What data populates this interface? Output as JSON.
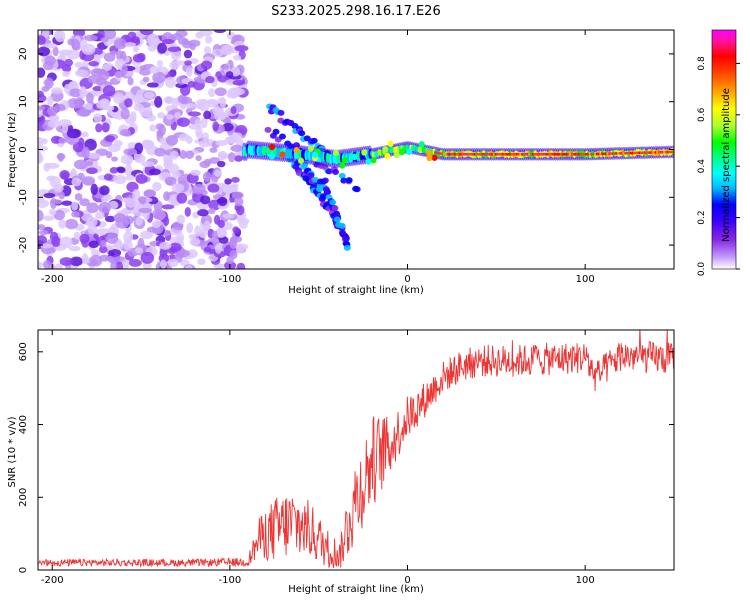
{
  "title": "S233.2025.298.16.17.E26",
  "chart_data": [
    {
      "type": "heatmap",
      "xlabel": "Height of straight line (km)",
      "ylabel": "Frequency (Hz)",
      "xlim": [
        -208,
        150
      ],
      "ylim": [
        -25,
        25
      ],
      "xticks": [
        -200,
        -100,
        0,
        100
      ],
      "yticks": [
        -20,
        -10,
        0,
        10,
        20
      ],
      "noise_region_x": [
        -208,
        -92
      ],
      "main_band": [
        {
          "x": -90,
          "y": 0
        },
        {
          "x": -60,
          "y": -1
        },
        {
          "x": -40,
          "y": -2
        },
        {
          "x": -20,
          "y": -1
        },
        {
          "x": 0,
          "y": 0.5
        },
        {
          "x": 20,
          "y": -1
        },
        {
          "x": 60,
          "y": -1
        },
        {
          "x": 100,
          "y": -1
        },
        {
          "x": 150,
          "y": -0.5
        }
      ],
      "dispersive_branches": [
        {
          "start": [
            -78,
            9
          ],
          "end": [
            -45,
            -1
          ]
        },
        {
          "start": [
            -78,
            4
          ],
          "end": [
            -28,
            -8
          ]
        },
        {
          "start": [
            -65,
            -2
          ],
          "end": [
            -45,
            -12
          ]
        },
        {
          "start": [
            -58,
            -3
          ],
          "end": [
            -35,
            -18
          ]
        },
        {
          "start": [
            -48,
            -6
          ],
          "end": [
            -33,
            -21
          ]
        }
      ],
      "colorbar": {
        "label": "Normalized spectral amplitude",
        "ticks": [
          0.0,
          0.2,
          0.4,
          0.6,
          0.8
        ],
        "range": [
          0,
          0.93
        ],
        "colors": [
          "#ffffff",
          "#c39bff",
          "#8a2be2",
          "#3b00ff",
          "#0000ff",
          "#00bfff",
          "#00ffff",
          "#00ff7f",
          "#00ff00",
          "#adff2f",
          "#ffff00",
          "#ffa500",
          "#ff4500",
          "#ff0000",
          "#ff1493",
          "#ff00ff"
        ]
      }
    },
    {
      "type": "line",
      "xlabel": "Height of straight line (km)",
      "ylabel": "SNR (10 * v/v)",
      "xlim": [
        -208,
        150
      ],
      "ylim": [
        0,
        660
      ],
      "xticks": [
        -200,
        -100,
        0,
        100
      ],
      "yticks": [
        0,
        200,
        400,
        600
      ],
      "color": "#ee3333",
      "series": [
        {
          "name": "SNR",
          "x": [
            -208,
            -180,
            -150,
            -120,
            -90,
            -83,
            -75,
            -65,
            -55,
            -45,
            -38,
            -32,
            -25,
            -20,
            -15,
            -10,
            0,
            10,
            20,
            30,
            40,
            60,
            80,
            100,
            106,
            120,
            150
          ],
          "y": [
            20,
            20,
            20,
            20,
            22,
            90,
            110,
            130,
            110,
            60,
            40,
            160,
            240,
            300,
            320,
            340,
            420,
            470,
            530,
            560,
            575,
            575,
            580,
            585,
            530,
            590,
            580
          ],
          "noise": [
            10,
            10,
            10,
            10,
            12,
            60,
            90,
            100,
            80,
            55,
            40,
            120,
            120,
            130,
            110,
            80,
            60,
            50,
            45,
            45,
            45,
            45,
            45,
            45,
            45,
            45,
            45
          ]
        }
      ]
    }
  ]
}
